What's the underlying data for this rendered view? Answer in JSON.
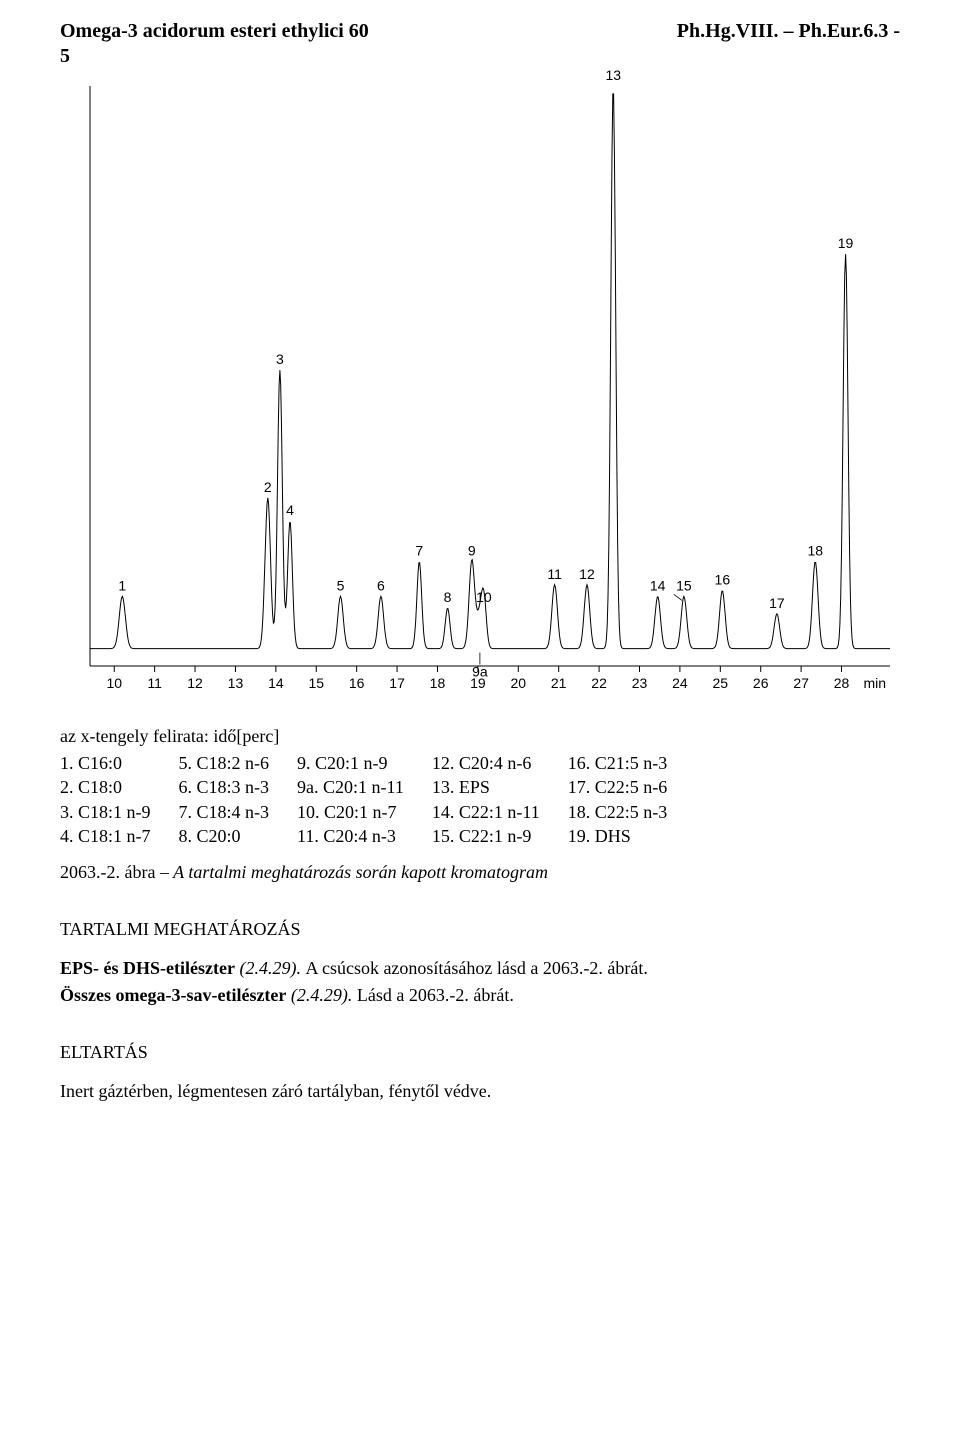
{
  "header": {
    "left": "Omega-3 acidorum esteri ethylici 60",
    "right": "Ph.Hg.VIII. – Ph.Eur.6.3 -",
    "sub": "5"
  },
  "chromatogram": {
    "type": "line",
    "background_color": "#ffffff",
    "axis_color": "#000000",
    "line_color": "#000000",
    "line_width": 1,
    "label_fontsize": 14,
    "xlim": [
      9.4,
      29.2
    ],
    "ylim": [
      0,
      100
    ],
    "xticks": [
      10,
      11,
      12,
      13,
      14,
      15,
      16,
      17,
      18,
      19,
      20,
      21,
      22,
      23,
      24,
      25,
      26,
      27,
      28
    ],
    "x_unit_label": "min",
    "peaks": [
      {
        "id": "1",
        "x": 10.2,
        "h": 9,
        "w": 0.18
      },
      {
        "id": "2",
        "x": 13.8,
        "h": 26,
        "w": 0.16
      },
      {
        "id": "3",
        "x": 14.1,
        "h": 48,
        "w": 0.14
      },
      {
        "id": "4",
        "x": 14.35,
        "h": 22,
        "w": 0.14
      },
      {
        "id": "5",
        "x": 15.6,
        "h": 9,
        "w": 0.16
      },
      {
        "id": "6",
        "x": 16.6,
        "h": 9,
        "w": 0.16
      },
      {
        "id": "7",
        "x": 17.55,
        "h": 15,
        "w": 0.14
      },
      {
        "id": "8",
        "x": 18.25,
        "h": 7,
        "w": 0.14
      },
      {
        "id": "9",
        "x": 18.85,
        "h": 15,
        "w": 0.16
      },
      {
        "id": "9a",
        "x": 19.05,
        "h": 6,
        "w": 0.2,
        "label_below": true
      },
      {
        "id": "10",
        "x": 19.15,
        "h": 7,
        "w": 0.14
      },
      {
        "id": "11",
        "x": 20.9,
        "h": 11,
        "w": 0.16
      },
      {
        "id": "12",
        "x": 21.7,
        "h": 11,
        "w": 0.16
      },
      {
        "id": "13",
        "x": 22.35,
        "h": 97,
        "w": 0.14
      },
      {
        "id": "14",
        "x": 23.45,
        "h": 9,
        "w": 0.16
      },
      {
        "id": "15",
        "x": 24.1,
        "h": 9,
        "w": 0.16,
        "arrow": true
      },
      {
        "id": "16",
        "x": 25.05,
        "h": 10,
        "w": 0.16
      },
      {
        "id": "17",
        "x": 26.4,
        "h": 6,
        "w": 0.16
      },
      {
        "id": "18",
        "x": 27.35,
        "h": 15,
        "w": 0.16
      },
      {
        "id": "19",
        "x": 28.1,
        "h": 68,
        "w": 0.14
      }
    ],
    "baseline_y": 3,
    "axis_caption": "az x-tengely felirata: idő[perc]"
  },
  "legend": {
    "columns": [
      [
        {
          "n": "1.",
          "label": "C16:0"
        },
        {
          "n": "2.",
          "label": "C18:0"
        },
        {
          "n": "3.",
          "label": "C18:1 n-9"
        },
        {
          "n": "4.",
          "label": "C18:1 n-7"
        }
      ],
      [
        {
          "n": "5.",
          "label": "C18:2 n-6"
        },
        {
          "n": "6.",
          "label": "C18:3 n-3"
        },
        {
          "n": "7.",
          "label": "C18:4 n-3"
        },
        {
          "n": "8.",
          "label": "C20:0"
        }
      ],
      [
        {
          "n": "9.",
          "label": "C20:1 n-9"
        },
        {
          "n": "9a.",
          "label": "C20:1 n-11"
        },
        {
          "n": "10.",
          "label": "C20:1 n-7"
        },
        {
          "n": "11.",
          "label": "C20:4 n-3"
        }
      ],
      [
        {
          "n": "12.",
          "label": "C20:4 n-6"
        },
        {
          "n": "13.",
          "label": "EPS"
        },
        {
          "n": "14.",
          "label": "C22:1 n-11"
        },
        {
          "n": "15.",
          "label": "C22:1 n-9"
        }
      ],
      [
        {
          "n": "16.",
          "label": "C21:5 n-3"
        },
        {
          "n": "17.",
          "label": "C22:5 n-6"
        },
        {
          "n": "18.",
          "label": "C22:5 n-3"
        },
        {
          "n": "19.",
          "label": "DHS"
        }
      ]
    ]
  },
  "figure_caption": {
    "number": "2063.-2. ábra",
    "text": " – A tartalmi meghatározás során kapott kromatogram"
  },
  "sections": {
    "assay_title": "TARTALMI MEGHATÁROZÁS",
    "p1_bold": "EPS- és DHS-etilészter",
    "p1_ital": " (2.4.29). ",
    "p1_rest": "A csúcsok azonosításához lásd a 2063.-2. ábrát.",
    "p2_bold": "Összes omega-3-sav-etilészter",
    "p2_ital": " (2.4.29). ",
    "p2_rest": "Lásd a 2063.-2. ábrát.",
    "storage_title": "ELTARTÁS",
    "storage_body": "Inert gáztérben, légmentesen záró tartályban, fénytől védve."
  }
}
